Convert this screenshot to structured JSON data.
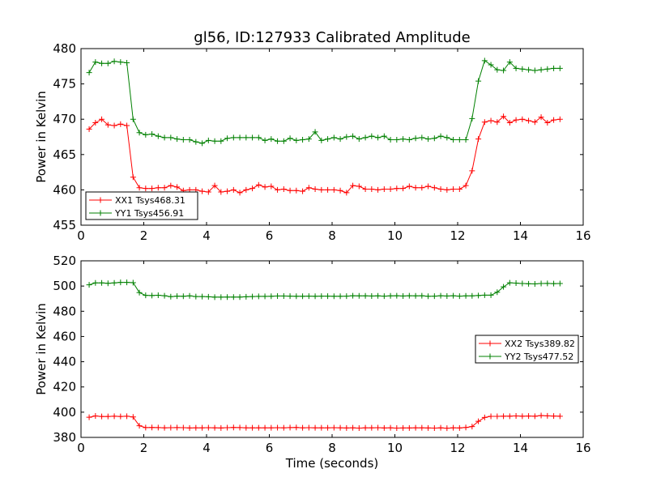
{
  "chart_data": [
    {
      "type": "line",
      "title": "gl56, ID:127933 Calibrated Amplitude",
      "xlabel": "",
      "ylabel": "Power in Kelvin",
      "xlim": [
        0,
        16
      ],
      "ylim": [
        455,
        480
      ],
      "xticks": [
        0,
        2,
        4,
        6,
        8,
        10,
        12,
        14,
        16
      ],
      "yticks": [
        455,
        460,
        465,
        470,
        475,
        480
      ],
      "grid": false,
      "legend_position": "lower-left",
      "x": [
        0.26,
        0.46,
        0.66,
        0.86,
        1.06,
        1.26,
        1.46,
        1.66,
        1.86,
        2.06,
        2.26,
        2.46,
        2.66,
        2.86,
        3.06,
        3.26,
        3.46,
        3.66,
        3.86,
        4.06,
        4.26,
        4.46,
        4.66,
        4.86,
        5.06,
        5.26,
        5.46,
        5.66,
        5.86,
        6.06,
        6.26,
        6.46,
        6.66,
        6.86,
        7.06,
        7.26,
        7.46,
        7.66,
        7.86,
        8.06,
        8.26,
        8.46,
        8.66,
        8.86,
        9.06,
        9.26,
        9.46,
        9.66,
        9.86,
        10.06,
        10.26,
        10.46,
        10.66,
        10.86,
        11.06,
        11.26,
        11.46,
        11.66,
        11.86,
        12.06,
        12.26,
        12.46,
        12.66,
        12.86,
        13.06,
        13.26,
        13.46,
        13.66,
        13.86,
        14.06,
        14.26,
        14.46,
        14.66,
        14.86,
        15.06,
        15.26
      ],
      "series": [
        {
          "name": "XX1 Tsys468.31",
          "color": "#ff0000",
          "values": [
            468.6,
            469.5,
            470.0,
            469.2,
            469.1,
            469.3,
            469.1,
            461.8,
            460.3,
            460.2,
            460.2,
            460.3,
            460.3,
            460.6,
            460.4,
            459.9,
            460.0,
            460.0,
            459.8,
            459.7,
            460.6,
            459.7,
            459.8,
            460.0,
            459.6,
            460.0,
            460.2,
            460.7,
            460.4,
            460.5,
            460.0,
            460.1,
            459.9,
            459.9,
            459.8,
            460.3,
            460.1,
            460.0,
            460.0,
            460.0,
            459.9,
            459.6,
            460.6,
            460.5,
            460.1,
            460.1,
            460.0,
            460.1,
            460.1,
            460.2,
            460.2,
            460.5,
            460.3,
            460.3,
            460.5,
            460.3,
            460.1,
            460.0,
            460.1,
            460.1,
            460.6,
            462.7,
            467.2,
            469.6,
            469.8,
            469.6,
            470.4,
            469.5,
            469.9,
            470.0,
            469.8,
            469.6,
            470.3,
            469.5,
            469.9,
            470.0
          ]
        },
        {
          "name": "YY1 Tsys456.91",
          "color": "#008000",
          "values": [
            476.6,
            478.1,
            477.9,
            477.9,
            478.2,
            478.1,
            478.0,
            470.0,
            468.1,
            467.8,
            467.9,
            467.6,
            467.4,
            467.4,
            467.2,
            467.1,
            467.1,
            466.8,
            466.6,
            467.0,
            466.9,
            466.9,
            467.3,
            467.4,
            467.4,
            467.4,
            467.4,
            467.4,
            467.0,
            467.2,
            466.9,
            466.9,
            467.3,
            467.0,
            467.1,
            467.2,
            468.2,
            467.0,
            467.2,
            467.4,
            467.2,
            467.5,
            467.6,
            467.2,
            467.4,
            467.6,
            467.4,
            467.6,
            467.1,
            467.1,
            467.2,
            467.1,
            467.3,
            467.4,
            467.2,
            467.3,
            467.6,
            467.4,
            467.1,
            467.1,
            467.1,
            470.1,
            475.4,
            478.3,
            477.7,
            477.0,
            476.9,
            478.1,
            477.2,
            477.1,
            477.0,
            476.9,
            477.0,
            477.1,
            477.2,
            477.2
          ]
        }
      ]
    },
    {
      "type": "line",
      "title": "",
      "xlabel": "Time (seconds)",
      "ylabel": "Power in Kelvin",
      "xlim": [
        0,
        16
      ],
      "ylim": [
        380,
        520
      ],
      "xticks": [
        0,
        2,
        4,
        6,
        8,
        10,
        12,
        14,
        16
      ],
      "yticks": [
        380,
        400,
        420,
        440,
        460,
        480,
        500,
        520
      ],
      "grid": false,
      "legend_position": "center-right",
      "x": [
        0.26,
        0.46,
        0.66,
        0.86,
        1.06,
        1.26,
        1.46,
        1.66,
        1.86,
        2.06,
        2.26,
        2.46,
        2.66,
        2.86,
        3.06,
        3.26,
        3.46,
        3.66,
        3.86,
        4.06,
        4.26,
        4.46,
        4.66,
        4.86,
        5.06,
        5.26,
        5.46,
        5.66,
        5.86,
        6.06,
        6.26,
        6.46,
        6.66,
        6.86,
        7.06,
        7.26,
        7.46,
        7.66,
        7.86,
        8.06,
        8.26,
        8.46,
        8.66,
        8.86,
        9.06,
        9.26,
        9.46,
        9.66,
        9.86,
        10.06,
        10.26,
        10.46,
        10.66,
        10.86,
        11.06,
        11.26,
        11.46,
        11.66,
        11.86,
        12.06,
        12.26,
        12.46,
        12.66,
        12.86,
        13.06,
        13.26,
        13.46,
        13.66,
        13.86,
        14.06,
        14.26,
        14.46,
        14.66,
        14.86,
        15.06,
        15.26
      ],
      "series": [
        {
          "name": "XX2 Tsys389.82",
          "color": "#ff0000",
          "values": [
            396.0,
            397.0,
            396.6,
            396.6,
            396.8,
            396.6,
            396.8,
            396.2,
            389.2,
            387.8,
            387.9,
            387.8,
            387.6,
            387.7,
            387.8,
            387.7,
            387.5,
            387.6,
            387.6,
            387.7,
            387.6,
            387.5,
            387.7,
            387.9,
            387.8,
            387.6,
            387.6,
            387.6,
            387.6,
            387.6,
            387.7,
            387.6,
            387.8,
            387.9,
            387.6,
            387.7,
            387.6,
            387.6,
            387.6,
            387.7,
            387.6,
            387.5,
            387.6,
            387.4,
            387.6,
            387.6,
            387.7,
            387.5,
            387.6,
            387.4,
            387.5,
            387.5,
            387.6,
            387.6,
            387.5,
            387.4,
            387.6,
            387.3,
            387.6,
            387.5,
            387.9,
            388.6,
            392.8,
            395.8,
            396.7,
            396.7,
            396.8,
            396.8,
            397.0,
            396.8,
            396.9,
            396.8,
            397.3,
            397.1,
            396.9,
            396.8
          ]
        },
        {
          "name": "YY2 Tsys477.52",
          "color": "#008000",
          "values": [
            501.0,
            502.5,
            502.5,
            502.2,
            502.5,
            502.9,
            502.9,
            502.7,
            494.8,
            492.6,
            492.5,
            492.7,
            492.3,
            491.6,
            492.0,
            491.9,
            492.2,
            491.7,
            491.7,
            491.5,
            491.2,
            491.2,
            491.3,
            491.3,
            491.3,
            491.5,
            491.7,
            491.8,
            491.8,
            491.9,
            492.1,
            492.1,
            492.0,
            491.9,
            491.9,
            492.0,
            491.9,
            492.0,
            492.0,
            491.9,
            491.9,
            492.0,
            492.3,
            492.2,
            492.2,
            492.1,
            492.2,
            492.0,
            492.2,
            492.3,
            492.1,
            492.3,
            492.2,
            492.3,
            491.9,
            492.0,
            492.3,
            492.1,
            492.3,
            492.0,
            492.2,
            492.2,
            492.5,
            492.8,
            492.8,
            495.1,
            499.4,
            502.6,
            502.3,
            502.0,
            501.8,
            501.7,
            502.0,
            502.1,
            501.9,
            502.0
          ]
        }
      ]
    }
  ]
}
